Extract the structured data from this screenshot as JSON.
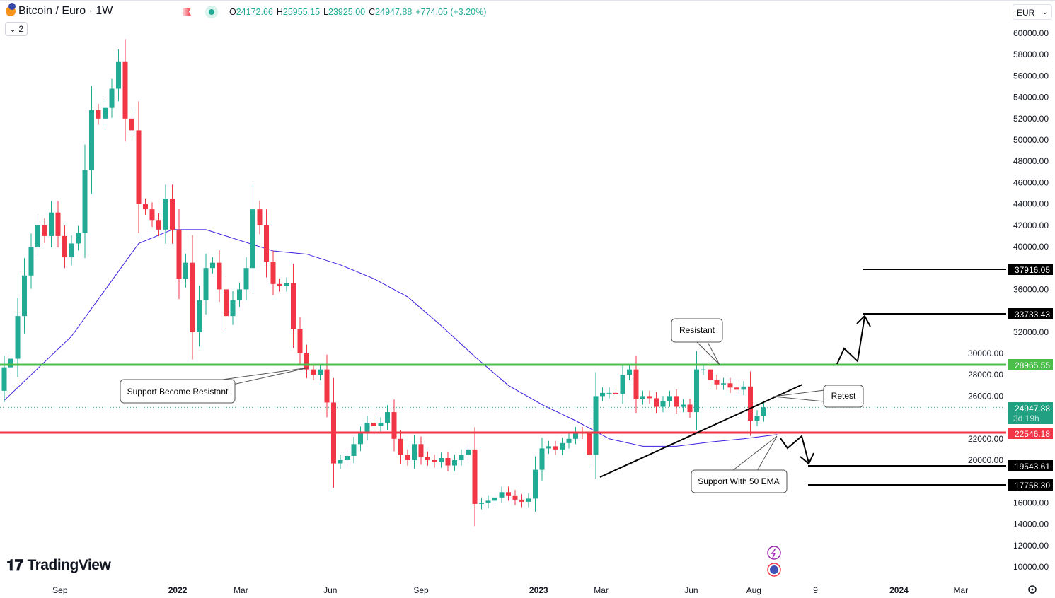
{
  "header": {
    "symbol": "Bitcoin / Euro · 1W",
    "collapse_count": "2",
    "open_label": "O",
    "open": "24172.66",
    "high_label": "H",
    "high": "25955.15",
    "low_label": "L",
    "low": "23925.00",
    "close_label": "C",
    "close": "24947.88",
    "change": "+774.05 (+3.20%)",
    "currency": "EUR"
  },
  "branding": {
    "logo": "TradingView"
  },
  "colors": {
    "up": "#22ab94",
    "down": "#f23645",
    "ema": "#3b1fe0",
    "support_line": "#4cbf4b",
    "resistance_line": "#f23645"
  },
  "chart_data": {
    "type": "candlestick",
    "title": "Bitcoin / Euro · 1W",
    "ylim": [
      10000,
      60000
    ],
    "y_ticks": [
      "60000.00",
      "58000.00",
      "56000.00",
      "54000.00",
      "52000.00",
      "50000.00",
      "48000.00",
      "46000.00",
      "44000.00",
      "42000.00",
      "40000.00",
      "36000.00",
      "32000.00",
      "30000.00",
      "28000.00",
      "26000.00",
      "22000.00",
      "20000.00",
      "16000.00",
      "14000.00",
      "12000.00",
      "10000.00"
    ],
    "x_labels": [
      {
        "t": "Sep",
        "bold": false,
        "w": 8.3
      },
      {
        "t": "2022",
        "bold": true,
        "w": 25.8
      },
      {
        "t": "Mar",
        "bold": false,
        "w": 35.2
      },
      {
        "t": "Jun",
        "bold": false,
        "w": 48.5
      },
      {
        "t": "Sep",
        "bold": false,
        "w": 62
      },
      {
        "t": "2023",
        "bold": true,
        "w": 79.5
      },
      {
        "t": "Mar",
        "bold": false,
        "w": 88.8
      },
      {
        "t": "Jun",
        "bold": false,
        "w": 102.2
      },
      {
        "t": "Aug",
        "bold": false,
        "w": 111.5
      },
      {
        "t": "9",
        "bold": false,
        "w": 120.7
      },
      {
        "t": "2024",
        "bold": true,
        "w": 133.1
      },
      {
        "t": "Mar",
        "bold": false,
        "w": 142.3
      }
    ],
    "start_open": 26500,
    "closes": [
      28700,
      29500,
      33500,
      37300,
      40000,
      42000,
      41000,
      43200,
      41000,
      39000,
      40300,
      41300,
      47200,
      52800,
      52000,
      53000,
      54800,
      57300,
      52000,
      50900,
      44000,
      43500,
      42500,
      41600,
      44500,
      41600,
      37000,
      38500,
      32000,
      35000,
      38000,
      38500,
      36000,
      33500,
      35000,
      36000,
      38000,
      43500,
      42000,
      38600,
      36500,
      36300,
      36600,
      32300,
      30000,
      28500,
      28000,
      28500,
      25400,
      19700,
      20000,
      20400,
      21500,
      22500,
      23500,
      23200,
      23500,
      24500,
      22000,
      20500,
      20000,
      21500,
      20300,
      20000,
      19800,
      20200,
      19500,
      20000,
      20500,
      21000,
      15900,
      16000,
      16200,
      16500,
      17000,
      16700,
      16300,
      16100,
      16400,
      19100,
      21100,
      21300,
      21000,
      21600,
      22000,
      22600,
      22500,
      20500,
      26000,
      26300,
      26300,
      26200,
      28000,
      28500,
      25700,
      26000,
      25800,
      25000,
      25500,
      26000,
      25000,
      25200,
      24500,
      28500,
      28500,
      27500,
      27100,
      27200,
      26800,
      26600,
      26900,
      23700,
      24172.66,
      24947.88
    ],
    "ema50": {
      "name": "EMA 50",
      "index": [
        0,
        10,
        20,
        25,
        30,
        40,
        45,
        50,
        55,
        60,
        65,
        70,
        75,
        80,
        85,
        90,
        95,
        100,
        105,
        110,
        115
      ],
      "values": [
        25600,
        31600,
        40300,
        41600,
        41600,
        39600,
        39300,
        38300,
        37000,
        35300,
        32600,
        29700,
        27000,
        25200,
        23700,
        22000,
        21300,
        21300,
        21700,
        22000,
        22400
      ]
    },
    "price_labels": {
      "level_1": "37916.05",
      "level_2": "33733.43",
      "support_resistance": "28965.55",
      "last_price": "24947.88",
      "countdown": "3d 19h",
      "support": "22546.18",
      "level_3": "19543.61",
      "level_4": "17758.30"
    },
    "annotations": {
      "resistant": "Resistant",
      "retest": "Retest",
      "support_become_resistant": "Support Become Resistant",
      "support_50ema": "Support With 50 EMA"
    }
  }
}
